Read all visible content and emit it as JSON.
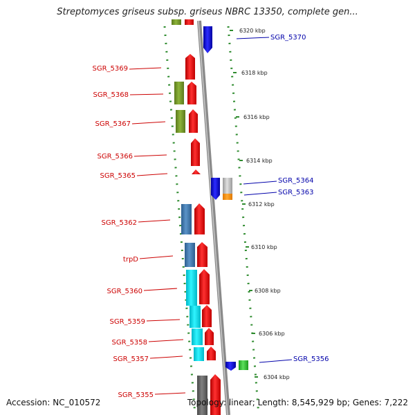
{
  "title": "Streptomyces griseus subsp. griseus NBRC 13350, complete gen...",
  "footer": {
    "accession": "Accession: NC_010572",
    "topology": "Topology: linear",
    "length": "Length: 8,545,929 bp",
    "genes": "Genes: 7,222"
  },
  "colors": {
    "strand_minus_label": "#cc0000",
    "strand_plus_label": "#0000aa",
    "backbone": "#8a8a8a",
    "tick_dots": "#2e8b2e"
  },
  "ticks": [
    {
      "label": "6320 kbp"
    },
    {
      "label": "6318 kbp"
    },
    {
      "label": "6316 kbp"
    },
    {
      "label": "6314 kbp"
    },
    {
      "label": "6312 kbp"
    },
    {
      "label": "6310 kbp"
    },
    {
      "label": "6308 kbp"
    },
    {
      "label": "6306 kbp"
    },
    {
      "label": "6304 kbp"
    }
  ],
  "left_labels": [
    "SGR_5369",
    "SGR_5368",
    "SGR_5367",
    "SGR_5366",
    "SGR_5365",
    "SGR_5362",
    "trpD",
    "SGR_5360",
    "SGR_5359",
    "SGR_5358",
    "SGR_5357",
    "SGR_5355"
  ],
  "right_labels": [
    "SGR_5370",
    "SGR_5364",
    "SGR_5363",
    "SGR_5356"
  ]
}
